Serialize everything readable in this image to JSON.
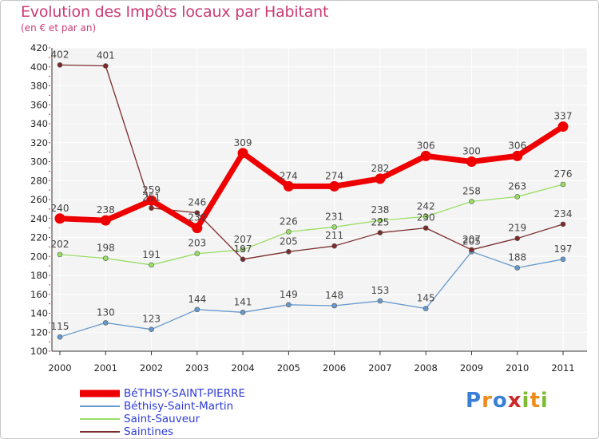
{
  "chart_data": {
    "type": "line",
    "title": "Evolution des Impôts locaux par Habitant",
    "subtitle": "(en € et par an)",
    "xlabel": "",
    "ylabel": "",
    "ylim": [
      100,
      420
    ],
    "ytick_step": 20,
    "grid": true,
    "legend_position": "bottom-left",
    "x": [
      "2000",
      "2001",
      "2002",
      "2003",
      "2004",
      "2005",
      "2006",
      "2007",
      "2008",
      "2009",
      "2010",
      "2011"
    ],
    "series": [
      {
        "name": "BéTHISY-SAINT-PIERRE",
        "color": "#ee0000",
        "emphasis": true,
        "values": [
          240,
          238,
          259,
          230,
          309,
          274,
          274,
          282,
          306,
          300,
          306,
          337
        ]
      },
      {
        "name": "Béthisy-Saint-Martin",
        "color": "#6699cc",
        "emphasis": false,
        "values": [
          115,
          130,
          123,
          144,
          141,
          149,
          148,
          153,
          145,
          205,
          188,
          197
        ]
      },
      {
        "name": "Saint-Sauveur",
        "color": "#99dd66",
        "emphasis": false,
        "values": [
          202,
          198,
          191,
          203,
          207,
          226,
          231,
          238,
          242,
          258,
          263,
          276
        ]
      },
      {
        "name": "Saintines",
        "color": "#7a2b2b",
        "emphasis": false,
        "values": [
          402,
          401,
          251,
          246,
          197,
          205,
          211,
          225,
          230,
          207,
          219,
          234
        ]
      }
    ]
  },
  "logo": {
    "text": "Proxiti",
    "colors": [
      "#3a7fd5",
      "#f08c1a",
      "#3a7fd5",
      "#cc2a2a",
      "#7dbb32",
      "#f08c1a",
      "#7dbb32"
    ]
  }
}
